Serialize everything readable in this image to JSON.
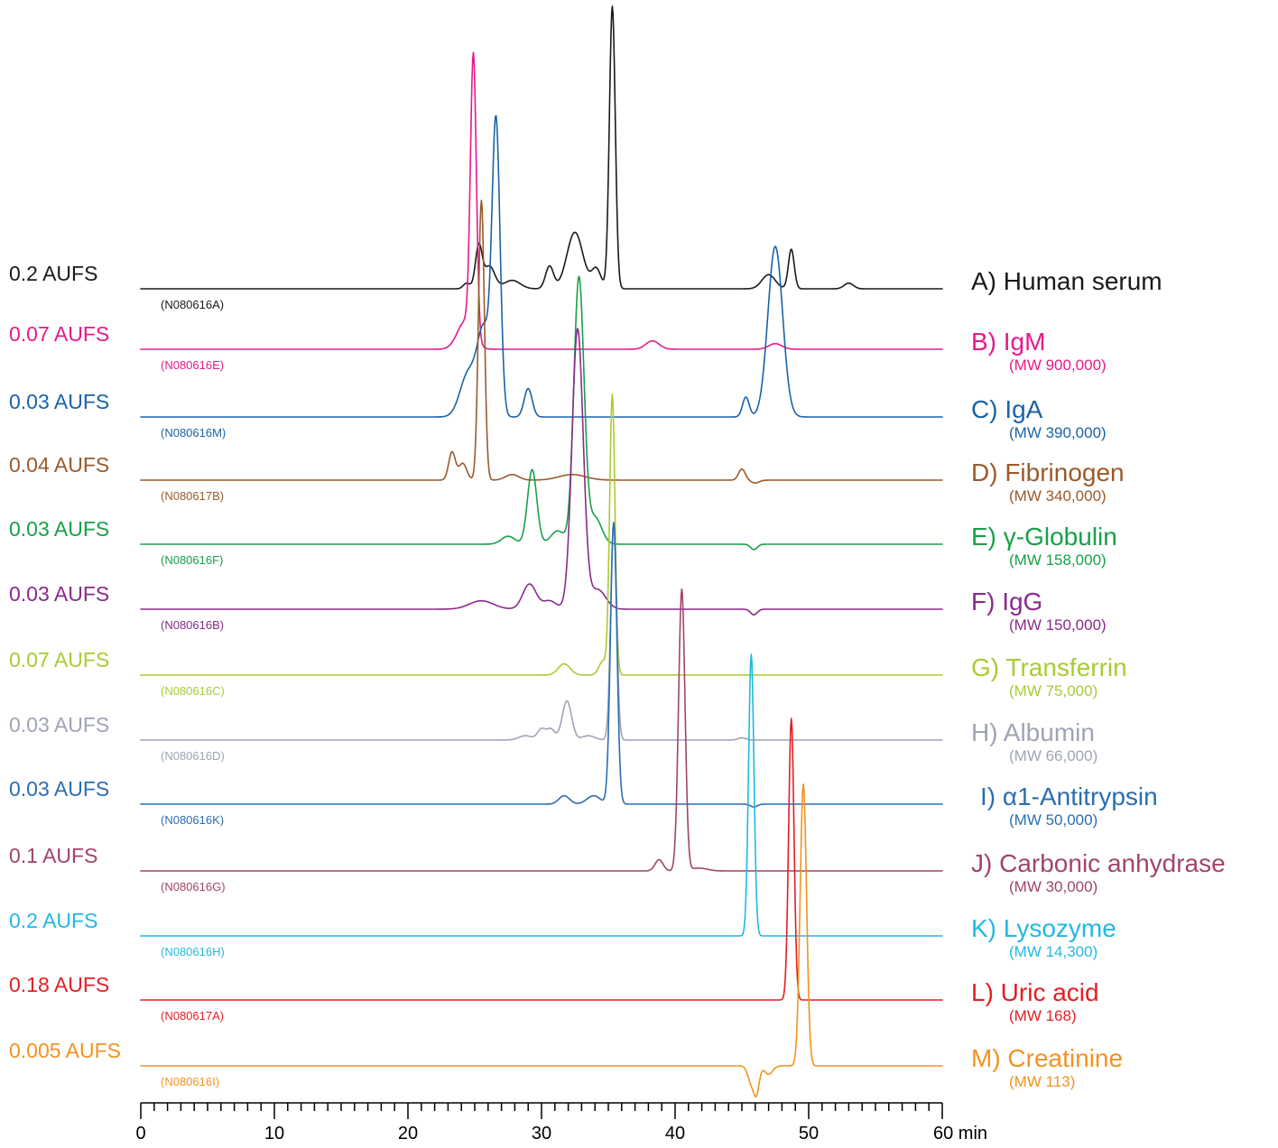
{
  "chart_data": {
    "type": "line",
    "title": "",
    "xlabel": "",
    "ylabel": "",
    "x_unit": "min",
    "xlim": [
      0,
      60
    ],
    "x_ticks": [
      0,
      10,
      20,
      30,
      40,
      50,
      60
    ],
    "x_tick_labels": [
      "0",
      "10",
      "20",
      "30",
      "40",
      "50",
      "60 min"
    ],
    "grid": false,
    "series": [
      {
        "id": "A",
        "name": "A) Human serum",
        "mw": "",
        "aufs": "0.2 AUFS",
        "code": "(N080616A)",
        "color": "#1a1a1a",
        "peaks": [
          [
            24.4,
            0.02,
            0.25
          ],
          [
            25.3,
            0.15,
            0.25
          ],
          [
            26.1,
            0.08,
            0.4
          ],
          [
            27.8,
            0.03,
            0.6
          ],
          [
            30.6,
            0.08,
            0.3
          ],
          [
            32.5,
            0.2,
            0.6
          ],
          [
            34.1,
            0.07,
            0.35
          ],
          [
            35.3,
            1.0,
            0.22
          ],
          [
            47.0,
            0.05,
            0.5
          ],
          [
            48.7,
            0.14,
            0.22
          ],
          [
            53.0,
            0.02,
            0.35
          ]
        ]
      },
      {
        "id": "B",
        "name": "B) IgM",
        "mw": "(MW 900,000)",
        "aufs": "0.07 AUFS",
        "code": "(N080616E)",
        "color": "#e6198c",
        "peaks": [
          [
            24.9,
            1.0,
            0.22
          ],
          [
            24.3,
            0.1,
            0.6
          ],
          [
            38.3,
            0.03,
            0.5
          ],
          [
            47.5,
            0.02,
            0.5
          ]
        ]
      },
      {
        "id": "C",
        "name": "C) IgA",
        "mw": "(MW 390,000)",
        "aufs": "0.03 AUFS",
        "code": "(N080616M)",
        "color": "#1a63a6",
        "peaks": [
          [
            24.5,
            0.15,
            0.6
          ],
          [
            25.7,
            0.3,
            0.5
          ],
          [
            26.6,
            1.0,
            0.3
          ],
          [
            29.0,
            0.1,
            0.3
          ],
          [
            45.3,
            0.07,
            0.25
          ],
          [
            47.5,
            0.6,
            0.55
          ]
        ]
      },
      {
        "id": "D",
        "name": "D) Fibrinogen",
        "mw": "(MW 340,000)",
        "aufs": "0.04 AUFS",
        "code": "(N080617B)",
        "color": "#9a5a2c",
        "peaks": [
          [
            23.3,
            0.1,
            0.25
          ],
          [
            24.1,
            0.06,
            0.3
          ],
          [
            25.5,
            1.0,
            0.22
          ],
          [
            27.8,
            0.02,
            0.5
          ],
          [
            32.3,
            0.02,
            1.0
          ],
          [
            45.0,
            0.04,
            0.25
          ],
          [
            46.0,
            -0.01,
            0.3
          ]
        ]
      },
      {
        "id": "E",
        "name": "E) γ-Globulin",
        "mw": "(MW 158,000)",
        "aufs": "0.03 AUFS",
        "code": "(N080616F)",
        "color": "#17a048",
        "peaks": [
          [
            27.5,
            0.03,
            0.5
          ],
          [
            29.3,
            0.28,
            0.35
          ],
          [
            31.2,
            0.05,
            0.5
          ],
          [
            32.8,
            1.0,
            0.38
          ],
          [
            34.0,
            0.1,
            0.5
          ],
          [
            45.9,
            -0.02,
            0.25
          ]
        ]
      },
      {
        "id": "F",
        "name": "F) IgG",
        "mw": "(MW 150,000)",
        "aufs": "0.03 AUFS",
        "code": "(N080616B)",
        "color": "#8a2a8c",
        "peaks": [
          [
            25.5,
            0.03,
            0.9
          ],
          [
            29.1,
            0.09,
            0.5
          ],
          [
            30.6,
            0.03,
            0.5
          ],
          [
            32.7,
            1.0,
            0.42
          ],
          [
            34.2,
            0.07,
            0.6
          ],
          [
            45.9,
            -0.02,
            0.25
          ]
        ]
      },
      {
        "id": "G",
        "name": "G) Transferrin",
        "mw": "(MW 75,000)",
        "aufs": "0.07 AUFS",
        "code": "(N080616C)",
        "color": "#a8cc32",
        "peaks": [
          [
            31.7,
            0.04,
            0.45
          ],
          [
            35.3,
            1.0,
            0.2
          ],
          [
            34.6,
            0.05,
            0.3
          ]
        ]
      },
      {
        "id": "H",
        "name": "H) Albumin",
        "mw": "(MW 66,000)",
        "aufs": "0.03 AUFS",
        "code": "(N080616D)",
        "color": "#9fa4b4",
        "peaks": [
          [
            28.8,
            0.02,
            0.5
          ],
          [
            30.0,
            0.05,
            0.3
          ],
          [
            30.7,
            0.05,
            0.3
          ],
          [
            31.9,
            0.18,
            0.35
          ],
          [
            33.5,
            0.02,
            0.5
          ],
          [
            35.4,
            1.0,
            0.22
          ],
          [
            45.0,
            0.01,
            0.3
          ]
        ]
      },
      {
        "id": "I",
        "name": "I) α1-Antitrypsin",
        "mw": "(MW 50,000)",
        "aufs": "0.03 AUFS",
        "code": "(N080616K)",
        "color": "#2a6eb2",
        "peaks": [
          [
            31.7,
            0.03,
            0.4
          ],
          [
            33.9,
            0.03,
            0.5
          ],
          [
            35.4,
            1.0,
            0.24
          ],
          [
            45.9,
            -0.01,
            0.25
          ]
        ]
      },
      {
        "id": "J",
        "name": "J) Carbonic anhydrase",
        "mw": "(MW 30,000)",
        "aufs": "0.1 AUFS",
        "code": "(N080616G)",
        "color": "#a0456c",
        "peaks": [
          [
            38.8,
            0.04,
            0.3
          ],
          [
            40.5,
            1.0,
            0.24
          ],
          [
            41.8,
            0.01,
            0.6
          ]
        ]
      },
      {
        "id": "K",
        "name": "K) Lysozyme",
        "mw": "(MW 14,300)",
        "aufs": "0.2 AUFS",
        "code": "(N080616H)",
        "color": "#21b8e6",
        "peaks": [
          [
            45.7,
            1.0,
            0.2
          ]
        ]
      },
      {
        "id": "L",
        "name": "L) Uric acid",
        "mw": "(MW 168)",
        "aufs": "0.18 AUFS",
        "code": "(N080617A)",
        "color": "#e31e24",
        "peaks": [
          [
            48.7,
            1.0,
            0.2
          ]
        ]
      },
      {
        "id": "M",
        "name": "M) Creatinine",
        "mw": "(MW 113)",
        "aufs": "0.005 AUFS",
        "code": "(N080616I)",
        "color": "#f29320",
        "peaks": [
          [
            45.7,
            -0.06,
            0.25
          ],
          [
            46.1,
            -0.09,
            0.2
          ],
          [
            47.0,
            -0.03,
            0.3
          ],
          [
            49.6,
            1.0,
            0.24
          ]
        ]
      }
    ]
  }
}
